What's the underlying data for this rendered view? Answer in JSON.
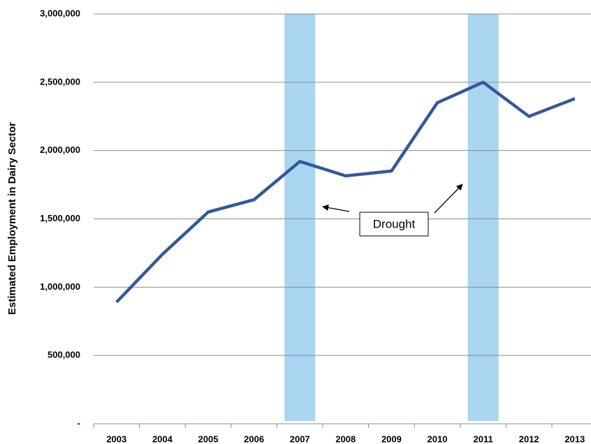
{
  "chart_data": {
    "type": "line",
    "ylabel": "Estimated Employment in Dairy Sector",
    "categories": [
      "2003",
      "2004",
      "2005",
      "2006",
      "2007",
      "2008",
      "2009",
      "2010",
      "2011",
      "2012",
      "2013"
    ],
    "series": [
      {
        "name": "Estimated Employment",
        "color": "#34589c",
        "values": [
          890000,
          1240000,
          1550000,
          1640000,
          1920000,
          1815000,
          1850000,
          2350000,
          2500000,
          2250000,
          2380000
        ]
      }
    ],
    "ylim": [
      0,
      3000000
    ],
    "yticks": [
      {
        "value": 0,
        "label": "-"
      },
      {
        "value": 500000,
        "label": "500,000"
      },
      {
        "value": 1000000,
        "label": "1,000,000"
      },
      {
        "value": 1500000,
        "label": "1,500,000"
      },
      {
        "value": 2000000,
        "label": "2,000,000"
      },
      {
        "value": 2500000,
        "label": "2,500,000"
      },
      {
        "value": 3000000,
        "label": "3,000,000"
      }
    ],
    "grid": true,
    "highlight_bands": [
      {
        "category": "2007",
        "color": "#a9d5f0"
      },
      {
        "category": "2011",
        "color": "#a9d5f0"
      }
    ],
    "annotation": "Drought"
  }
}
